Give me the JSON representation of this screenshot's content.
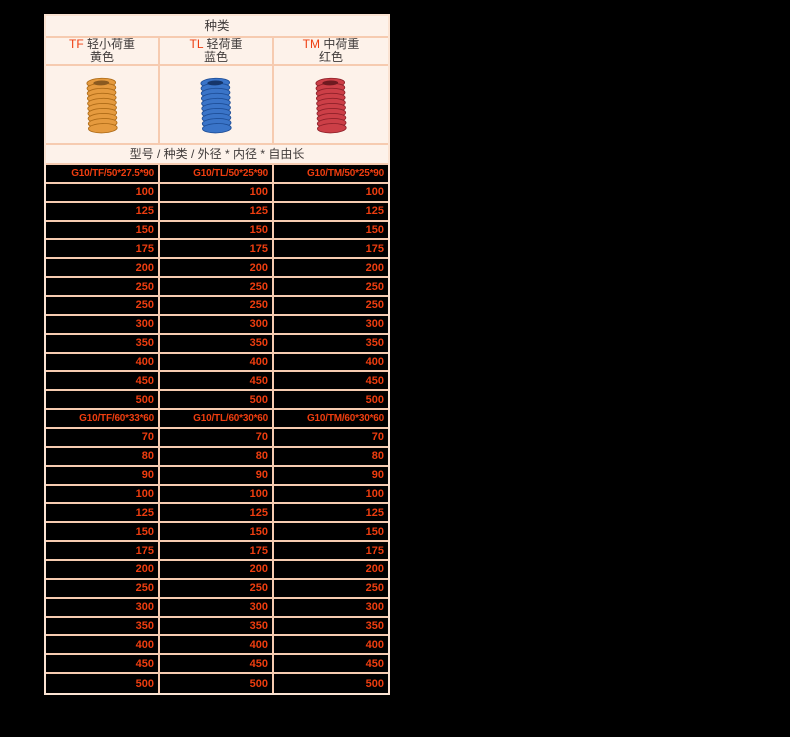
{
  "table": {
    "title": "种类",
    "spec_header": "型号 / 种类 / 外径 * 内径 * 自由长",
    "columns": [
      {
        "code": "TF",
        "load": "轻小荷重",
        "color_name": "黄色",
        "spring": {
          "base": "#e59a3e",
          "dark": "#ad6a16",
          "hole": "#8a5a20",
          "gap": "#9b7c55"
        }
      },
      {
        "code": "TL",
        "load": "轻荷重",
        "color_name": "蓝色",
        "spring": {
          "base": "#3a74c8",
          "dark": "#1d4d96",
          "hole": "#16366b",
          "gap": "#2a4a7d"
        }
      },
      {
        "code": "TM",
        "load": "中荷重",
        "color_name": "红色",
        "spring": {
          "base": "#cc3f47",
          "dark": "#8e2029",
          "hole": "#6e1a20",
          "gap": "#7d3a3d"
        }
      }
    ],
    "sections": [
      {
        "models": [
          "G10/TF/50*27.5*90",
          "G10/TL/50*25*90",
          "G10/TM/50*25*90"
        ],
        "lengths": [
          "100",
          "125",
          "150",
          "175",
          "200",
          "250",
          "250",
          "300",
          "350",
          "400",
          "450",
          "500"
        ]
      },
      {
        "models": [
          "G10/TF/60*33*60",
          "G10/TL/60*30*60",
          "G10/TM/60*30*60"
        ],
        "lengths": [
          "70",
          "80",
          "90",
          "100",
          "125",
          "150",
          "175",
          "200",
          "250",
          "300",
          "350",
          "400",
          "450",
          "500"
        ]
      }
    ],
    "colors": {
      "page_bg": "#000000",
      "header_bg": "#fdf2ea",
      "grid_border": "#f6cbb0",
      "outer_border": "#fbe3d2",
      "accent_orange": "#ee3d0f",
      "text_dark": "#403b3a"
    }
  }
}
